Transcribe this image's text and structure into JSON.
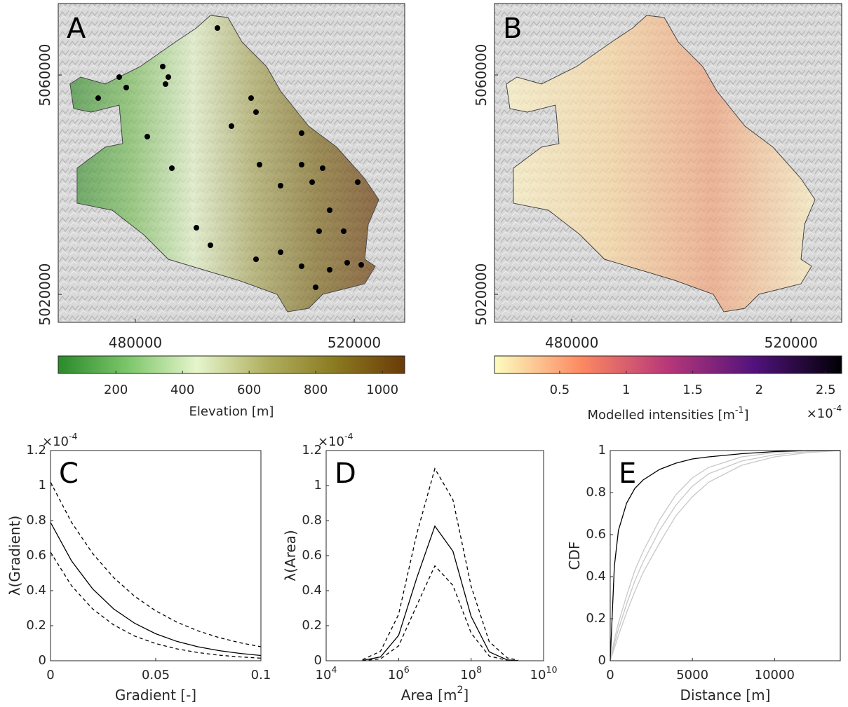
{
  "chart_data": [
    {
      "type": "map",
      "label": "A",
      "xlim": [
        465900,
        529230
      ],
      "ylim": [
        5014900,
        5073040
      ],
      "xticks": [
        480000,
        520000
      ],
      "yticks": [
        5020000,
        5060000
      ],
      "fill_colors": [
        "#3d8f35",
        "#7dbf5e",
        "#e3f2c8",
        "#a9a65a",
        "#7f6a1e",
        "#6b3a0a"
      ],
      "colorbar": {
        "label": "Elevation [m]",
        "lim": [
          27,
          1067
        ],
        "ticks": [
          200,
          400,
          600,
          800,
          1000
        ],
        "colors": [
          "#2a8a2a",
          "#7cc66a",
          "#e6f5cc",
          "#b0b060",
          "#8a7a20",
          "#6b3a08"
        ]
      }
    },
    {
      "type": "map",
      "label": "B",
      "xlim": [
        465900,
        529230
      ],
      "ylim": [
        5014900,
        5073040
      ],
      "xticks": [
        480000,
        520000
      ],
      "yticks": [
        5020000,
        5060000
      ],
      "fill_colors": [
        "#fdf3c4",
        "#fbd8a0",
        "#f3a27a",
        "#fdf1c0"
      ],
      "colorbar": {
        "label": "Modelled intensities [m^-1]",
        "multiplier": "×10^-4",
        "lim": [
          0.01,
          2.62
        ],
        "ticks": [
          0.5,
          1,
          1.5,
          2,
          2.5
        ],
        "colors": [
          "#fcfdbf",
          "#fc8961",
          "#b73779",
          "#51127c",
          "#000004"
        ]
      }
    },
    {
      "type": "line",
      "label": "C",
      "xlabel": "Gradient [-]",
      "ylabel": "λ(Gradient)",
      "multiplier": "×10^-4",
      "xlim": [
        0,
        0.1
      ],
      "ylim": [
        0,
        1.2
      ],
      "xticks": [
        0,
        0.05,
        0.1
      ],
      "yticks": [
        0,
        0.2,
        0.4,
        0.6,
        0.8,
        1,
        1.2
      ],
      "x": [
        0,
        0.01,
        0.02,
        0.03,
        0.04,
        0.05,
        0.06,
        0.07,
        0.08,
        0.09,
        0.1
      ],
      "series": [
        {
          "color": "#000000",
          "style": "solid",
          "values": [
            0.79,
            0.57,
            0.411,
            0.296,
            0.214,
            0.154,
            0.111,
            0.08,
            0.058,
            0.042,
            0.03
          ]
        },
        {
          "color": "#000000",
          "style": "dashed",
          "values": [
            1.02,
            0.79,
            0.613,
            0.475,
            0.368,
            0.285,
            0.221,
            0.171,
            0.133,
            0.103,
            0.08
          ]
        },
        {
          "color": "#000000",
          "style": "dashed",
          "values": [
            0.62,
            0.428,
            0.296,
            0.205,
            0.141,
            0.098,
            0.068,
            0.047,
            0.032,
            0.022,
            0.015
          ]
        }
      ]
    },
    {
      "type": "line",
      "label": "D",
      "xlabel": "Area [m^2]",
      "ylabel": "λ(Area)",
      "multiplier": "×10^-4",
      "xscale": "log",
      "xlim": [
        10000,
        10000000000
      ],
      "ylim": [
        0,
        1.2
      ],
      "xticks": [
        {
          "value": 10000,
          "label": "10^4"
        },
        {
          "value": 1000000,
          "label": "10^6"
        },
        {
          "value": 100000000,
          "label": "10^8"
        },
        {
          "value": 10000000000,
          "label": "10^10"
        }
      ],
      "yticks": [
        0,
        0.2,
        0.4,
        0.6,
        0.8,
        1,
        1.2
      ],
      "x": [
        100000,
        316228,
        1000000,
        3162278,
        10000000,
        31622777,
        100000000,
        316227766,
        1000000000,
        1995262315
      ],
      "series": [
        {
          "color": "#000000",
          "style": "solid",
          "values": [
            0.002,
            0.022,
            0.145,
            0.473,
            0.769,
            0.625,
            0.253,
            0.051,
            0.005,
            0.001
          ]
        },
        {
          "color": "#000000",
          "style": "dashed",
          "values": [
            0.006,
            0.054,
            0.265,
            0.725,
            1.097,
            0.919,
            0.425,
            0.109,
            0.016,
            0.004
          ]
        },
        {
          "color": "#000000",
          "style": "dashed",
          "values": [
            0.001,
            0.011,
            0.085,
            0.316,
            0.542,
            0.43,
            0.158,
            0.027,
            0.002,
            0.0003
          ]
        }
      ]
    },
    {
      "type": "line",
      "label": "E",
      "xlabel": "Distance [m]",
      "ylabel": "CDF",
      "xlim": [
        0,
        14000
      ],
      "ylim": [
        0,
        1
      ],
      "xticks": [
        0,
        5000,
        10000
      ],
      "yticks": [
        0,
        0.2,
        0.4,
        0.6,
        0.8,
        1
      ],
      "x": [
        0,
        250,
        500,
        1000,
        1500,
        2000,
        3000,
        4000,
        5000,
        6000,
        8000,
        10000,
        12000,
        14000
      ],
      "series": [
        {
          "color": "#c8c8c8",
          "style": "solid",
          "values": [
            0,
            0.08,
            0.15,
            0.27,
            0.38,
            0.47,
            0.62,
            0.74,
            0.83,
            0.89,
            0.95,
            0.98,
            0.995,
            1
          ]
        },
        {
          "color": "#c8c8c8",
          "style": "solid",
          "values": [
            0,
            0.1,
            0.18,
            0.31,
            0.43,
            0.52,
            0.67,
            0.79,
            0.87,
            0.92,
            0.97,
            0.99,
            1,
            1
          ]
        },
        {
          "color": "#c8c8c8",
          "style": "solid",
          "values": [
            0,
            0.06,
            0.12,
            0.23,
            0.33,
            0.42,
            0.56,
            0.69,
            0.78,
            0.85,
            0.93,
            0.97,
            0.99,
            1
          ]
        },
        {
          "color": "#000000",
          "style": "solid",
          "values": [
            0,
            0.45,
            0.62,
            0.75,
            0.82,
            0.86,
            0.91,
            0.94,
            0.96,
            0.97,
            0.985,
            0.995,
            1,
            1
          ]
        }
      ]
    }
  ]
}
